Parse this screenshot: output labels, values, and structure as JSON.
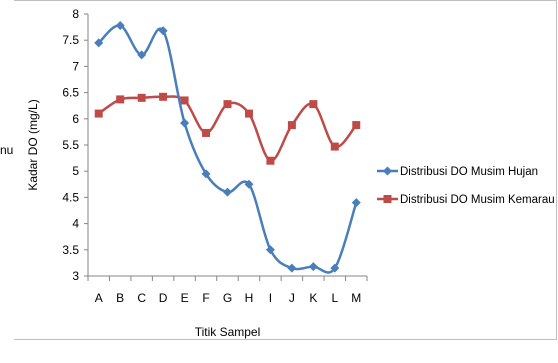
{
  "side_fragment": "nu",
  "chart_data": {
    "type": "line",
    "categories": [
      "A",
      "B",
      "C",
      "D",
      "E",
      "F",
      "G",
      "H",
      "I",
      "J",
      "K",
      "L",
      "M"
    ],
    "xlabel": "Titik Sampel",
    "ylabel": "Kadar DO (mg/L)",
    "ylim": [
      3,
      8
    ],
    "yticks": [
      "3",
      "3.5",
      "4",
      "4.5",
      "5",
      "5.5",
      "6",
      "6.5",
      "7",
      "7.5",
      "8"
    ],
    "legend": "right",
    "grid": false,
    "smooth": true,
    "series": [
      {
        "name": "Distribusi DO Musim Hujan",
        "color": "#4a7ebb",
        "marker": "diamond",
        "values": [
          7.45,
          7.78,
          7.22,
          7.68,
          5.92,
          4.95,
          4.6,
          4.75,
          3.5,
          3.15,
          3.18,
          3.15,
          4.4
        ]
      },
      {
        "name": "Distribusi DO Musim Kemarau",
        "color": "#be4b48",
        "marker": "square",
        "values": [
          6.1,
          6.37,
          6.4,
          6.42,
          6.35,
          5.73,
          6.28,
          6.1,
          5.2,
          5.88,
          6.28,
          5.47,
          5.88
        ]
      }
    ]
  }
}
